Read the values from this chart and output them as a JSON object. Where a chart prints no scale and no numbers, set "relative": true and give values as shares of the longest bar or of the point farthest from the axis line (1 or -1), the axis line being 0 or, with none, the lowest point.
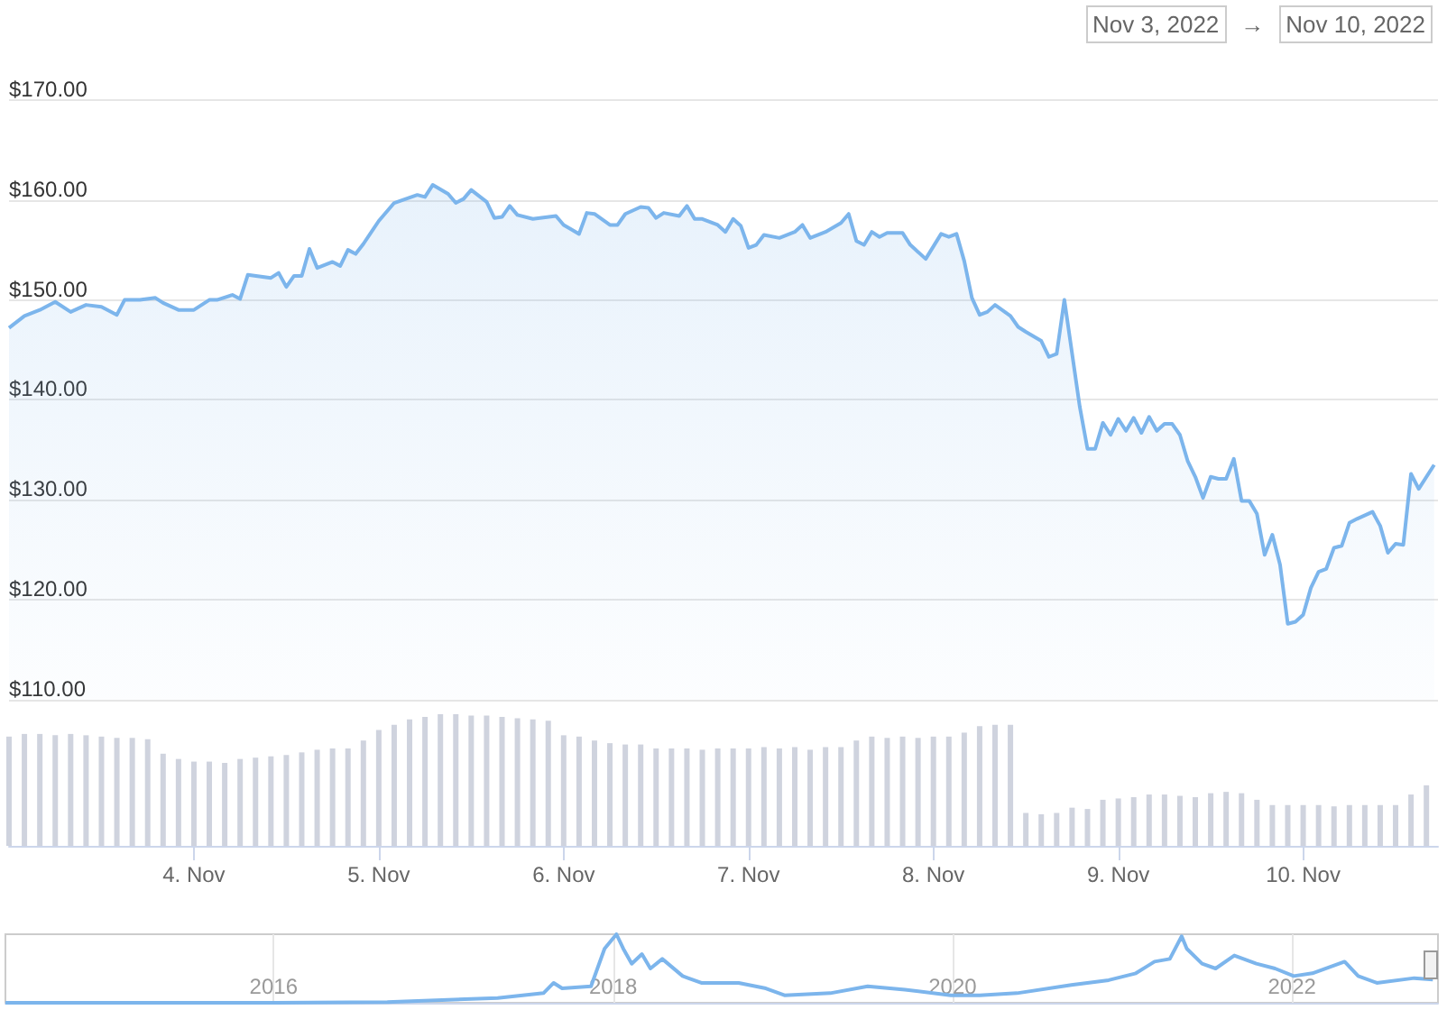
{
  "chart_data": [
    {
      "type": "area",
      "annotations": [
        "Nov 3, 2022",
        "→",
        "Nov 10, 2022"
      ],
      "color": "#7cb5ec",
      "marker": "none",
      "grid": "y",
      "tick_labels": "y",
      "xlim": [
        "2022-11-03T00:00",
        "2022-11-10T17:30"
      ],
      "ylim": [
        110,
        180
      ],
      "yticks": [
        {
          "value": 110,
          "label": "$110.00"
        },
        {
          "value": 120,
          "label": "$120.00"
        },
        {
          "value": 130,
          "label": "$130.00"
        },
        {
          "value": 140,
          "label": "$140.00"
        },
        {
          "value": 150,
          "label": "$150.00"
        },
        {
          "value": 160,
          "label": "$160.00"
        },
        {
          "value": 170,
          "label": "$170.00"
        }
      ],
      "x": [
        "2022-11-03T00:00",
        "2022-11-03T02:00",
        "2022-11-03T04:00",
        "2022-11-03T06:00",
        "2022-11-03T08:00",
        "2022-11-03T10:00",
        "2022-11-03T12:00",
        "2022-11-03T14:00",
        "2022-11-03T15:00",
        "2022-11-03T17:00",
        "2022-11-03T19:00",
        "2022-11-03T20:00",
        "2022-11-03T22:00",
        "2022-11-04T00:00",
        "2022-11-04T02:00",
        "2022-11-04T03:00",
        "2022-11-04T05:00",
        "2022-11-04T06:00",
        "2022-11-04T07:00",
        "2022-11-04T10:00",
        "2022-11-04T11:00",
        "2022-11-04T12:00",
        "2022-11-04T13:00",
        "2022-11-04T14:00",
        "2022-11-04T15:00",
        "2022-11-04T16:00",
        "2022-11-04T18:00",
        "2022-11-04T19:00",
        "2022-11-04T20:00",
        "2022-11-04T21:00",
        "2022-11-04T22:00",
        "2022-11-05T00:00",
        "2022-11-05T02:00",
        "2022-11-05T05:00",
        "2022-11-05T06:00",
        "2022-11-05T07:00",
        "2022-11-05T09:00",
        "2022-11-05T10:00",
        "2022-11-05T11:00",
        "2022-11-05T12:00",
        "2022-11-05T14:00",
        "2022-11-05T15:00",
        "2022-11-05T16:00",
        "2022-11-05T17:00",
        "2022-11-05T18:00",
        "2022-11-05T20:00",
        "2022-11-05T23:00",
        "2022-11-06T00:00",
        "2022-11-06T02:00",
        "2022-11-06T03:00",
        "2022-11-06T04:00",
        "2022-11-06T06:00",
        "2022-11-06T07:00",
        "2022-11-06T08:00",
        "2022-11-06T10:00",
        "2022-11-06T11:00",
        "2022-11-06T12:00",
        "2022-11-06T13:00",
        "2022-11-06T15:00",
        "2022-11-06T16:00",
        "2022-11-06T17:00",
        "2022-11-06T18:00",
        "2022-11-06T20:00",
        "2022-11-06T21:00",
        "2022-11-06T22:00",
        "2022-11-06T23:00",
        "2022-11-07T00:00",
        "2022-11-07T01:00",
        "2022-11-07T02:00",
        "2022-11-07T04:00",
        "2022-11-07T06:00",
        "2022-11-07T07:00",
        "2022-11-07T08:00",
        "2022-11-07T10:00",
        "2022-11-07T12:00",
        "2022-11-07T13:00",
        "2022-11-07T14:00",
        "2022-11-07T15:00",
        "2022-11-07T16:00",
        "2022-11-07T17:00",
        "2022-11-07T18:00",
        "2022-11-07T20:00",
        "2022-11-07T21:00",
        "2022-11-07T23:00",
        "2022-11-08T01:00",
        "2022-11-08T02:00",
        "2022-11-08T03:00",
        "2022-11-08T04:00",
        "2022-11-08T05:00",
        "2022-11-08T06:00",
        "2022-11-08T07:00",
        "2022-11-08T08:00",
        "2022-11-08T10:00",
        "2022-11-08T11:00",
        "2022-11-08T12:00",
        "2022-11-08T14:00",
        "2022-11-08T15:00",
        "2022-11-08T16:00",
        "2022-11-08T17:00",
        "2022-11-08T19:00",
        "2022-11-08T20:00",
        "2022-11-08T21:00",
        "2022-11-08T22:00",
        "2022-11-08T23:00",
        "2022-11-09T00:00",
        "2022-11-09T01:00",
        "2022-11-09T02:00",
        "2022-11-09T03:00",
        "2022-11-09T04:00",
        "2022-11-09T05:00",
        "2022-11-09T06:00",
        "2022-11-09T07:00",
        "2022-11-09T08:00",
        "2022-11-09T09:00",
        "2022-11-09T10:00",
        "2022-11-09T11:00",
        "2022-11-09T12:00",
        "2022-11-09T13:00",
        "2022-11-09T14:00",
        "2022-11-09T15:00",
        "2022-11-09T16:00",
        "2022-11-09T17:00",
        "2022-11-09T18:00",
        "2022-11-09T19:00",
        "2022-11-09T20:00",
        "2022-11-09T21:00",
        "2022-11-09T22:00",
        "2022-11-09T23:00",
        "2022-11-10T00:00",
        "2022-11-10T01:00",
        "2022-11-10T02:00",
        "2022-11-10T03:00",
        "2022-11-10T04:00",
        "2022-11-10T05:00",
        "2022-11-10T06:00",
        "2022-11-10T07:00",
        "2022-11-10T09:00",
        "2022-11-10T10:00",
        "2022-11-10T11:00",
        "2022-11-10T12:00",
        "2022-11-10T13:00",
        "2022-11-10T14:00",
        "2022-11-10T15:00",
        "2022-11-10T17:00"
      ],
      "values": [
        147.2,
        148.4,
        149.0,
        149.8,
        148.8,
        149.5,
        149.3,
        148.5,
        150.0,
        150.0,
        150.2,
        149.7,
        149.0,
        149.0,
        150.0,
        150.0,
        150.5,
        150.1,
        152.5,
        152.2,
        152.7,
        151.3,
        152.4,
        152.4,
        155.1,
        153.2,
        153.8,
        153.4,
        155.0,
        154.6,
        155.6,
        157.9,
        159.7,
        160.5,
        160.3,
        161.5,
        160.6,
        159.7,
        160.1,
        161.0,
        159.8,
        158.2,
        158.3,
        159.4,
        158.5,
        158.1,
        158.4,
        157.5,
        156.6,
        158.7,
        158.6,
        157.5,
        157.5,
        158.6,
        159.3,
        159.2,
        158.2,
        158.7,
        158.4,
        159.4,
        158.1,
        158.1,
        157.5,
        156.8,
        158.1,
        157.4,
        155.2,
        155.5,
        156.5,
        156.2,
        156.8,
        157.5,
        156.2,
        156.8,
        157.7,
        158.6,
        155.9,
        155.5,
        156.8,
        156.3,
        156.7,
        156.7,
        155.5,
        154.1,
        156.6,
        156.3,
        156.6,
        153.9,
        150.2,
        148.5,
        148.8,
        149.5,
        148.4,
        147.3,
        146.8,
        145.9,
        144.3,
        144.6,
        150.0,
        139.3,
        135.1,
        135.1,
        137.7,
        136.5,
        138.1,
        136.9,
        138.2,
        136.7,
        138.3,
        136.9,
        137.6,
        137.6,
        136.5,
        133.9,
        132.3,
        130.2,
        132.3,
        132.1,
        132.1,
        134.1,
        129.9,
        129.9,
        128.6,
        124.5,
        126.5,
        123.5,
        117.6,
        117.8,
        118.5,
        121.2,
        122.8,
        123.1,
        125.2,
        125.4,
        127.7,
        128.1,
        128.8,
        127.4,
        124.7,
        125.6,
        125.5,
        132.6,
        131.1,
        133.5
      ]
    },
    {
      "type": "bar",
      "relative": true,
      "color": "#cfd3de",
      "xlim": [
        "2022-11-03T00:00",
        "2022-11-10T17:30"
      ],
      "xticks": [
        {
          "value": "2022-11-04",
          "label": "4. Nov"
        },
        {
          "value": "2022-11-05",
          "label": "5. Nov"
        },
        {
          "value": "2022-11-06",
          "label": "6. Nov"
        },
        {
          "value": "2022-11-07",
          "label": "7. Nov"
        },
        {
          "value": "2022-11-08",
          "label": "8. Nov"
        },
        {
          "value": "2022-11-09",
          "label": "9. Nov"
        },
        {
          "value": "2022-11-10",
          "label": "10. Nov"
        }
      ],
      "x": [
        "2022-11-03T00:00",
        "2022-11-03T02:00",
        "2022-11-03T04:00",
        "2022-11-03T06:00",
        "2022-11-03T08:00",
        "2022-11-03T10:00",
        "2022-11-03T12:00",
        "2022-11-03T14:00",
        "2022-11-03T16:00",
        "2022-11-03T18:00",
        "2022-11-03T20:00",
        "2022-11-03T22:00",
        "2022-11-04T00:00",
        "2022-11-04T02:00",
        "2022-11-04T04:00",
        "2022-11-04T06:00",
        "2022-11-04T08:00",
        "2022-11-04T10:00",
        "2022-11-04T12:00",
        "2022-11-04T14:00",
        "2022-11-04T16:00",
        "2022-11-04T18:00",
        "2022-11-04T20:00",
        "2022-11-04T22:00",
        "2022-11-05T00:00",
        "2022-11-05T02:00",
        "2022-11-05T04:00",
        "2022-11-05T06:00",
        "2022-11-05T08:00",
        "2022-11-05T10:00",
        "2022-11-05T12:00",
        "2022-11-05T14:00",
        "2022-11-05T16:00",
        "2022-11-05T18:00",
        "2022-11-05T20:00",
        "2022-11-05T22:00",
        "2022-11-06T00:00",
        "2022-11-06T02:00",
        "2022-11-06T04:00",
        "2022-11-06T06:00",
        "2022-11-06T08:00",
        "2022-11-06T10:00",
        "2022-11-06T12:00",
        "2022-11-06T14:00",
        "2022-11-06T16:00",
        "2022-11-06T18:00",
        "2022-11-06T20:00",
        "2022-11-06T22:00",
        "2022-11-07T00:00",
        "2022-11-07T02:00",
        "2022-11-07T04:00",
        "2022-11-07T06:00",
        "2022-11-07T08:00",
        "2022-11-07T10:00",
        "2022-11-07T12:00",
        "2022-11-07T14:00",
        "2022-11-07T16:00",
        "2022-11-07T18:00",
        "2022-11-07T20:00",
        "2022-11-07T22:00",
        "2022-11-08T00:00",
        "2022-11-08T02:00",
        "2022-11-08T04:00",
        "2022-11-08T06:00",
        "2022-11-08T08:00",
        "2022-11-08T10:00",
        "2022-11-08T12:00",
        "2022-11-08T14:00",
        "2022-11-08T16:00",
        "2022-11-08T18:00",
        "2022-11-08T20:00",
        "2022-11-08T22:00",
        "2022-11-09T00:00",
        "2022-11-09T02:00",
        "2022-11-09T04:00",
        "2022-11-09T06:00",
        "2022-11-09T08:00",
        "2022-11-09T10:00",
        "2022-11-09T12:00",
        "2022-11-09T14:00",
        "2022-11-09T16:00",
        "2022-11-09T18:00",
        "2022-11-09T20:00",
        "2022-11-09T22:00",
        "2022-11-10T00:00",
        "2022-11-10T02:00",
        "2022-11-10T04:00",
        "2022-11-10T06:00",
        "2022-11-10T08:00",
        "2022-11-10T10:00",
        "2022-11-10T12:00",
        "2022-11-10T14:00",
        "2022-11-10T16:00"
      ],
      "values": [
        0.83,
        0.85,
        0.85,
        0.84,
        0.85,
        0.84,
        0.83,
        0.82,
        0.82,
        0.81,
        0.7,
        0.66,
        0.64,
        0.64,
        0.63,
        0.66,
        0.67,
        0.68,
        0.69,
        0.71,
        0.73,
        0.74,
        0.74,
        0.8,
        0.88,
        0.92,
        0.96,
        0.98,
        1.0,
        1.0,
        0.99,
        0.99,
        0.98,
        0.97,
        0.96,
        0.95,
        0.84,
        0.83,
        0.8,
        0.78,
        0.77,
        0.77,
        0.74,
        0.74,
        0.74,
        0.73,
        0.74,
        0.74,
        0.74,
        0.75,
        0.74,
        0.75,
        0.73,
        0.75,
        0.75,
        0.8,
        0.83,
        0.82,
        0.83,
        0.82,
        0.83,
        0.83,
        0.86,
        0.91,
        0.92,
        0.92,
        0.25,
        0.24,
        0.25,
        0.29,
        0.28,
        0.35,
        0.36,
        0.37,
        0.39,
        0.39,
        0.38,
        0.37,
        0.4,
        0.41,
        0.4,
        0.35,
        0.31,
        0.31,
        0.31,
        0.31,
        0.3,
        0.31,
        0.31,
        0.31,
        0.31,
        0.39,
        0.46
      ]
    },
    {
      "type": "line",
      "relative": true,
      "color": "#7cb5ec",
      "marker": "none",
      "grid": "x",
      "xlim": [
        2014.42,
        2022.86
      ],
      "xticks": [
        2016,
        2018,
        2020,
        2022
      ],
      "x": [
        2014.42,
        2016.01,
        2016.67,
        2017.32,
        2017.59,
        2017.65,
        2017.7,
        2017.87,
        2017.95,
        2018.02,
        2018.06,
        2018.11,
        2018.17,
        2018.22,
        2018.29,
        2018.41,
        2018.52,
        2018.74,
        2018.9,
        2019.01,
        2019.28,
        2019.5,
        2019.72,
        2019.99,
        2020.16,
        2020.38,
        2020.7,
        2020.92,
        2021.08,
        2021.19,
        2021.28,
        2021.35,
        2021.38,
        2021.47,
        2021.55,
        2021.66,
        2021.79,
        2021.9,
        2022.01,
        2022.12,
        2022.31,
        2022.39,
        2022.5,
        2022.72,
        2022.83
      ],
      "values": [
        0,
        0,
        0.01,
        0.07,
        0.14,
        0.29,
        0.21,
        0.24,
        0.79,
        1.0,
        0.79,
        0.57,
        0.71,
        0.5,
        0.64,
        0.39,
        0.29,
        0.29,
        0.21,
        0.11,
        0.14,
        0.24,
        0.19,
        0.11,
        0.11,
        0.14,
        0.26,
        0.33,
        0.43,
        0.6,
        0.64,
        0.97,
        0.79,
        0.57,
        0.5,
        0.69,
        0.57,
        0.5,
        0.39,
        0.43,
        0.6,
        0.39,
        0.29,
        0.36,
        0.34
      ]
    }
  ]
}
